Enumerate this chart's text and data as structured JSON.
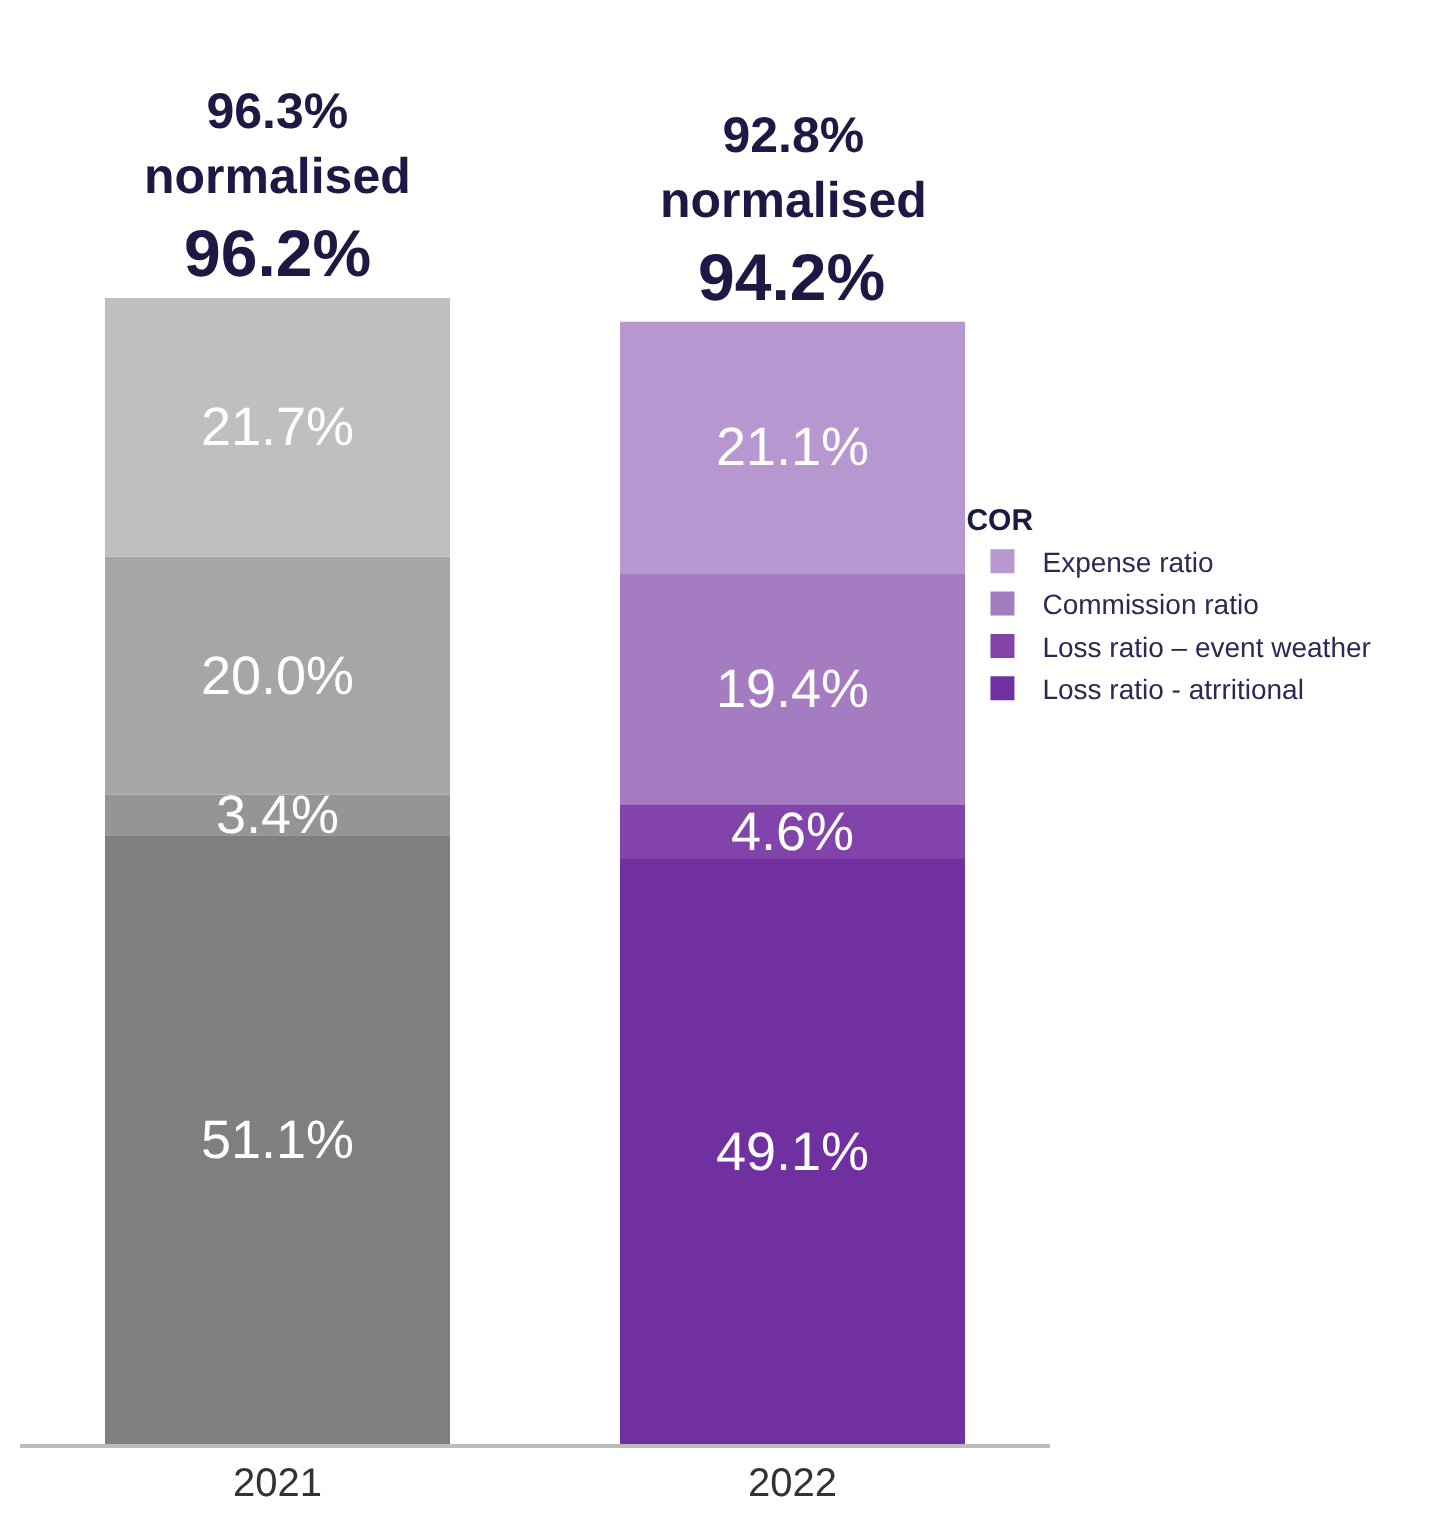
{
  "chart_data": {
    "type": "bar",
    "stacked": true,
    "categories": [
      "2021",
      "2022"
    ],
    "series": [
      {
        "name": "Loss ratio - atrritional",
        "colors": [
          "#7f7f7f",
          "#7030a0"
        ],
        "values": [
          51.1,
          49.1
        ],
        "value_labels": [
          "51.1%",
          "49.1%"
        ]
      },
      {
        "name": "Loss ratio – event weather",
        "colors": [
          "#959595",
          "#8244aa"
        ],
        "values": [
          3.4,
          4.6
        ],
        "value_labels": [
          "3.4%",
          "4.6%"
        ]
      },
      {
        "name": "Commission ratio",
        "colors": [
          "#a6a6a6",
          "#a57cc2"
        ],
        "values": [
          20.0,
          19.4
        ],
        "value_labels": [
          "20.0%",
          "19.4%"
        ]
      },
      {
        "name": "Expense ratio",
        "colors": [
          "#bfbfbf",
          "#b797d0"
        ],
        "values": [
          21.7,
          21.1
        ],
        "value_labels": [
          "21.7%",
          "21.1%"
        ]
      }
    ],
    "totals": [
      "96.2%",
      "94.2%"
    ],
    "annotations": [
      {
        "text": "96.3%\nnormalised",
        "x": "2021",
        "y": 96.2
      },
      {
        "text": "92.8%\nnormalised",
        "x": "2022",
        "y": 94.2
      }
    ],
    "legend": "right",
    "legend_title": "COR",
    "tick_labels": "x"
  }
}
